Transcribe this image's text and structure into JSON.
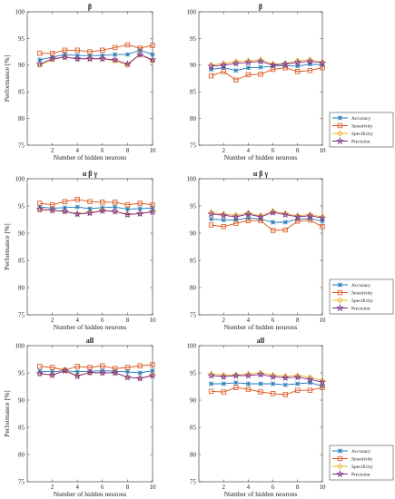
{
  "colors": {
    "Accuracy": "#1f77b4",
    "Sensitivity": "#d95319",
    "Specificity": "#edb120",
    "Precision": "#7e2f8e"
  },
  "chart_data": [
    {
      "id": "p1",
      "type": "line",
      "title": "β",
      "xlabel": "Number of hidden neurons",
      "ylabel": "Performance [%]",
      "xlim": [
        0,
        10
      ],
      "ylim": [
        75,
        100
      ],
      "xticks": [
        2,
        4,
        6,
        8,
        10
      ],
      "yticks": [
        75,
        80,
        85,
        90,
        95,
        100
      ],
      "legend": null,
      "x": [
        1,
        2,
        3,
        4,
        5,
        6,
        7,
        8,
        9,
        10
      ],
      "series": [
        {
          "name": "Accuracy",
          "values": [
            91.0,
            91.5,
            92.0,
            91.8,
            91.8,
            91.8,
            92.0,
            92.0,
            92.8,
            92.0
          ]
        },
        {
          "name": "Sensitivity",
          "values": [
            92.2,
            92.2,
            92.8,
            92.8,
            92.5,
            92.8,
            93.3,
            93.8,
            93.2,
            93.7
          ]
        },
        {
          "name": "Specificity",
          "values": [
            90.0,
            91.0,
            91.5,
            91.2,
            91.2,
            91.2,
            90.8,
            90.0,
            92.0,
            90.8
          ]
        },
        {
          "name": "Precision",
          "values": [
            90.2,
            91.2,
            91.5,
            91.2,
            91.2,
            91.2,
            91.0,
            90.2,
            92.0,
            91.0
          ]
        }
      ]
    },
    {
      "id": "p2",
      "type": "line",
      "title": "β",
      "xlabel": "Number of hidden neurons",
      "ylabel": "",
      "xlim": [
        0,
        10
      ],
      "ylim": [
        75,
        100
      ],
      "xticks": [
        2,
        4,
        6,
        8,
        10
      ],
      "yticks": [
        75,
        80,
        85,
        90,
        95,
        100
      ],
      "legend": "bottom-right",
      "x": [
        1,
        2,
        3,
        4,
        5,
        6,
        7,
        8,
        9,
        10
      ],
      "series": [
        {
          "name": "Accuracy",
          "values": [
            89.2,
            89.5,
            89.0,
            89.5,
            89.6,
            89.8,
            89.9,
            89.8,
            90.2,
            90.0
          ]
        },
        {
          "name": "Sensitivity",
          "values": [
            88.0,
            88.8,
            87.2,
            88.2,
            88.3,
            89.2,
            89.5,
            88.8,
            89.0,
            89.5
          ]
        },
        {
          "name": "Specificity",
          "values": [
            90.0,
            90.3,
            90.7,
            90.8,
            91.0,
            90.2,
            90.3,
            90.8,
            91.0,
            90.6
          ]
        },
        {
          "name": "Precision",
          "values": [
            89.8,
            90.0,
            90.3,
            90.5,
            90.7,
            90.0,
            90.2,
            90.5,
            90.7,
            90.4
          ]
        }
      ]
    },
    {
      "id": "p3",
      "type": "line",
      "title": "α β γ",
      "xlabel": "Number of hidden neurons",
      "ylabel": "Performance [%]",
      "xlim": [
        0,
        10
      ],
      "ylim": [
        75,
        100
      ],
      "xticks": [
        2,
        4,
        6,
        8,
        10
      ],
      "yticks": [
        75,
        80,
        85,
        90,
        95,
        100
      ],
      "legend": null,
      "x": [
        1,
        2,
        3,
        4,
        5,
        6,
        7,
        8,
        9,
        10
      ],
      "series": [
        {
          "name": "Accuracy",
          "values": [
            94.8,
            94.6,
            94.7,
            94.8,
            94.5,
            94.7,
            94.8,
            94.4,
            94.5,
            94.6
          ]
        },
        {
          "name": "Sensitivity",
          "values": [
            95.5,
            95.2,
            95.8,
            96.2,
            95.8,
            95.7,
            95.7,
            95.2,
            95.5,
            95.2
          ]
        },
        {
          "name": "Specificity",
          "values": [
            94.2,
            94.2,
            94.0,
            93.6,
            93.8,
            94.2,
            94.0,
            93.5,
            93.6,
            94.0
          ]
        },
        {
          "name": "Precision",
          "values": [
            94.4,
            94.2,
            94.0,
            93.5,
            93.7,
            94.1,
            94.0,
            93.4,
            93.6,
            93.9
          ]
        }
      ]
    },
    {
      "id": "p4",
      "type": "line",
      "title": "α β γ",
      "xlabel": "Number of hidden neurons",
      "ylabel": "",
      "xlim": [
        0,
        10
      ],
      "ylim": [
        75,
        100
      ],
      "xticks": [
        2,
        4,
        6,
        8,
        10
      ],
      "yticks": [
        75,
        80,
        85,
        90,
        95,
        100
      ],
      "legend": "bottom-right",
      "x": [
        1,
        2,
        3,
        4,
        5,
        6,
        7,
        8,
        9,
        10
      ],
      "series": [
        {
          "name": "Accuracy",
          "values": [
            92.6,
            92.4,
            92.4,
            92.8,
            92.6,
            92.0,
            92.0,
            92.6,
            92.7,
            92.2
          ]
        },
        {
          "name": "Sensitivity",
          "values": [
            91.5,
            91.2,
            91.8,
            92.3,
            92.3,
            90.5,
            90.6,
            92.2,
            92.4,
            91.2
          ]
        },
        {
          "name": "Specificity",
          "values": [
            93.8,
            93.5,
            93.3,
            93.7,
            93.2,
            94.0,
            93.6,
            93.2,
            93.4,
            93.0
          ]
        },
        {
          "name": "Precision",
          "values": [
            93.5,
            93.3,
            93.0,
            93.5,
            93.0,
            93.8,
            93.4,
            93.0,
            93.2,
            92.8
          ]
        }
      ]
    },
    {
      "id": "p5",
      "type": "line",
      "title": "all",
      "xlabel": "Number of hidden neurons",
      "ylabel": "Performance [%]",
      "xlim": [
        0,
        10
      ],
      "ylim": [
        75,
        100
      ],
      "xticks": [
        2,
        4,
        6,
        8,
        10
      ],
      "yticks": [
        75,
        80,
        85,
        90,
        95,
        100
      ],
      "legend": null,
      "x": [
        1,
        2,
        3,
        4,
        5,
        6,
        7,
        8,
        9,
        10
      ],
      "series": [
        {
          "name": "Accuracy",
          "values": [
            95.3,
            95.2,
            95.4,
            95.2,
            95.3,
            95.4,
            95.3,
            95.2,
            95.0,
            95.4
          ]
        },
        {
          "name": "Sensitivity",
          "values": [
            96.2,
            96.0,
            95.5,
            96.2,
            96.0,
            96.3,
            95.8,
            96.0,
            96.3,
            96.5
          ]
        },
        {
          "name": "Specificity",
          "values": [
            94.8,
            94.6,
            95.5,
            94.5,
            95.0,
            95.0,
            95.0,
            94.2,
            94.0,
            94.6
          ]
        },
        {
          "name": "Precision",
          "values": [
            94.9,
            94.6,
            95.4,
            94.4,
            95.1,
            95.0,
            95.0,
            94.2,
            94.0,
            94.5
          ]
        }
      ]
    },
    {
      "id": "p6",
      "type": "line",
      "title": "all",
      "xlabel": "Number of hidden neurons",
      "ylabel": "",
      "xlim": [
        0,
        10
      ],
      "ylim": [
        75,
        100
      ],
      "xticks": [
        2,
        4,
        6,
        8,
        10
      ],
      "yticks": [
        75,
        80,
        85,
        90,
        95,
        100
      ],
      "legend": "bottom-right",
      "x": [
        1,
        2,
        3,
        4,
        5,
        6,
        7,
        8,
        9,
        10
      ],
      "series": [
        {
          "name": "Accuracy",
          "values": [
            93.0,
            93.0,
            93.2,
            93.0,
            93.0,
            93.0,
            92.8,
            93.0,
            93.2,
            92.6
          ]
        },
        {
          "name": "Sensitivity",
          "values": [
            91.6,
            91.5,
            92.3,
            92.0,
            91.5,
            91.2,
            91.0,
            91.8,
            91.8,
            92.3
          ]
        },
        {
          "name": "Specificity",
          "values": [
            94.8,
            94.6,
            94.6,
            94.8,
            95.0,
            94.6,
            94.4,
            94.5,
            94.2,
            93.6
          ]
        },
        {
          "name": "Precision",
          "values": [
            94.5,
            94.3,
            94.5,
            94.5,
            94.7,
            94.3,
            94.1,
            94.2,
            93.8,
            93.3
          ]
        }
      ]
    }
  ]
}
